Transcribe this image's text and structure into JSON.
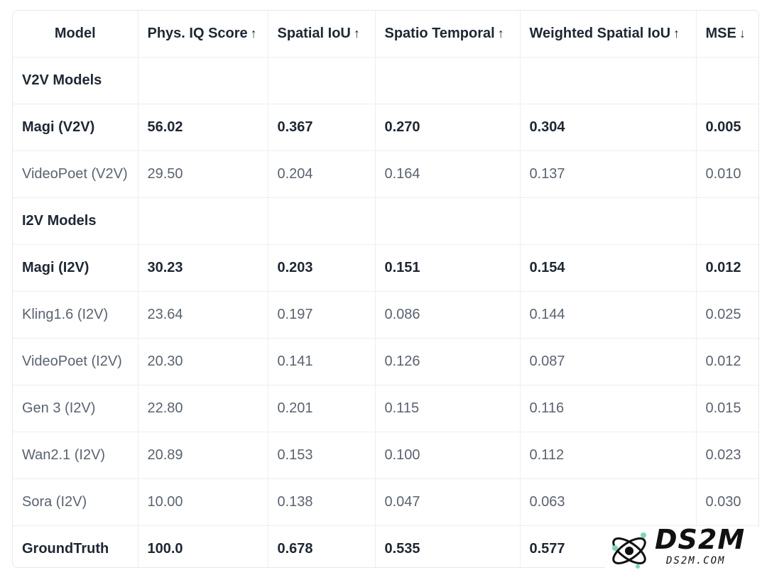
{
  "table": {
    "headers": [
      {
        "label": "Model",
        "arrow": ""
      },
      {
        "label": "Phys. IQ Score",
        "arrow": "↑"
      },
      {
        "label": "Spatial IoU",
        "arrow": "↑"
      },
      {
        "label": "Spatio Temporal",
        "arrow": "↑"
      },
      {
        "label": "Weighted Spatial IoU",
        "arrow": "↑"
      },
      {
        "label": "MSE",
        "arrow": "↓"
      }
    ],
    "groups": {
      "v2v": "V2V Models",
      "i2v": "I2V Models"
    },
    "rows": [
      {
        "model": "Magi (V2V)",
        "score": "56.02",
        "iou": "0.367",
        "st": "0.270",
        "wiou": "0.304",
        "mse": "0.005"
      },
      {
        "model": "VideoPoet (V2V)",
        "score": "29.50",
        "iou": "0.204",
        "st": "0.164",
        "wiou": "0.137",
        "mse": "0.010"
      },
      {
        "model": "Magi (I2V)",
        "score": "30.23",
        "iou": "0.203",
        "st": "0.151",
        "wiou": "0.154",
        "mse": "0.012"
      },
      {
        "model": "Kling1.6 (I2V)",
        "score": "23.64",
        "iou": "0.197",
        "st": "0.086",
        "wiou": "0.144",
        "mse": "0.025"
      },
      {
        "model": "VideoPoet (I2V)",
        "score": "20.30",
        "iou": "0.141",
        "st": "0.126",
        "wiou": "0.087",
        "mse": "0.012"
      },
      {
        "model": "Gen 3 (I2V)",
        "score": "22.80",
        "iou": "0.201",
        "st": "0.115",
        "wiou": "0.116",
        "mse": "0.015"
      },
      {
        "model": "Wan2.1 (I2V)",
        "score": "20.89",
        "iou": "0.153",
        "st": "0.100",
        "wiou": "0.112",
        "mse": "0.023"
      },
      {
        "model": "Sora (I2V)",
        "score": "10.00",
        "iou": "0.138",
        "st": "0.047",
        "wiou": "0.063",
        "mse": "0.030"
      },
      {
        "model": "GroundTruth",
        "score": "100.0",
        "iou": "0.678",
        "st": "0.535",
        "wiou": "0.577",
        "mse": ""
      }
    ]
  },
  "watermark": {
    "brand": "DS2M",
    "domain": "DS2M.COM"
  },
  "colors": {
    "text_strong": "#1f2733",
    "text_muted": "#5a6370",
    "border": "#eceef1",
    "logo_accent": "#7fd7b0"
  }
}
